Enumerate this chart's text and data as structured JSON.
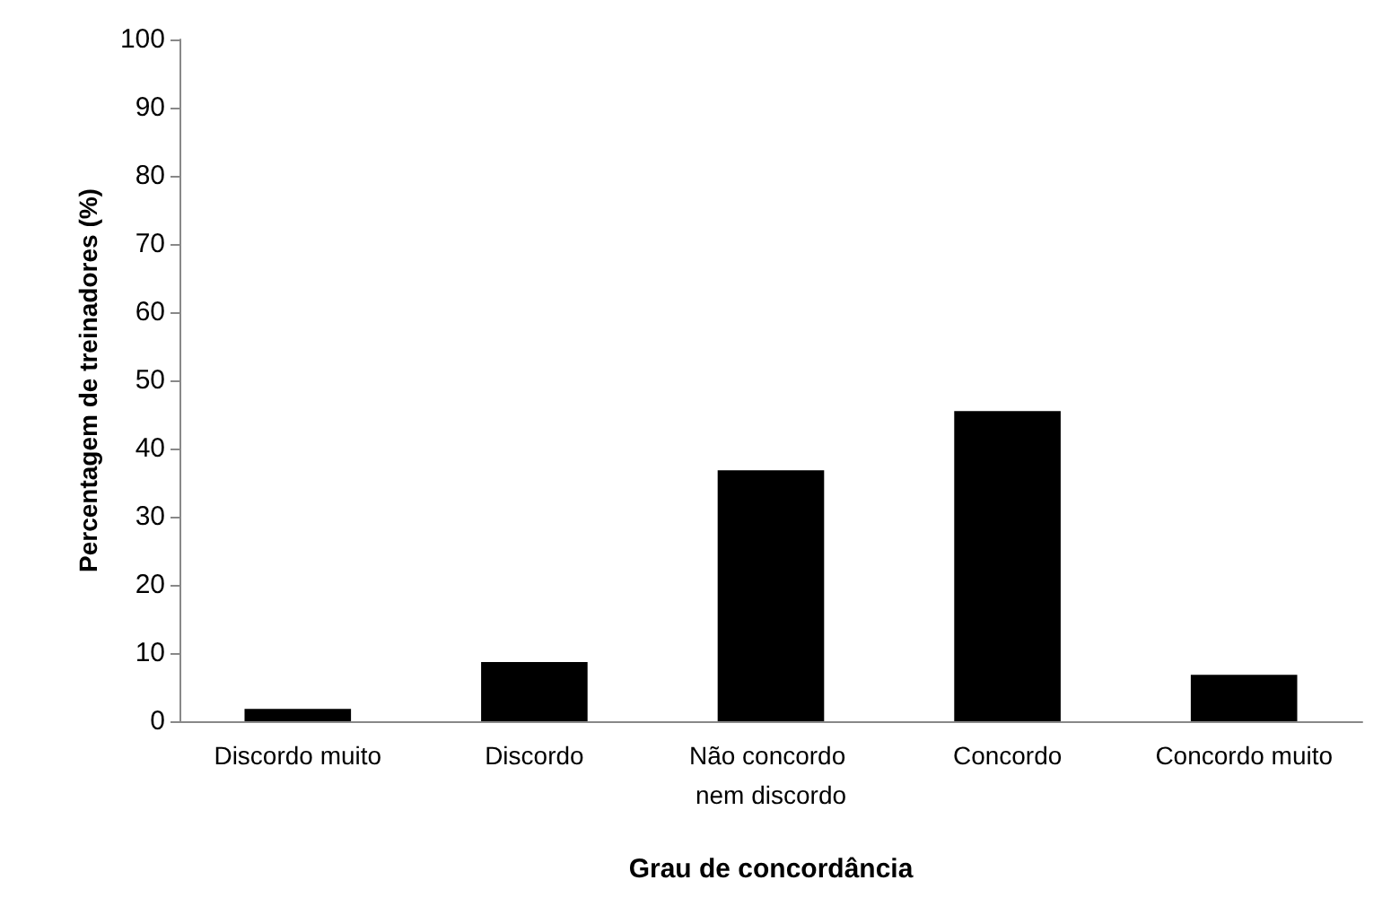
{
  "chart_data": {
    "type": "bar",
    "xlabel": "Grau de concordância",
    "ylabel": "Percentagem de treinadores (%)",
    "categories": [
      "Discordo muito",
      "Discordo",
      "Não concordo nem discordo",
      "Concordo",
      "Concordo muito"
    ],
    "values": [
      1.8,
      8.7,
      36.8,
      45.5,
      6.8
    ],
    "color": "#000000",
    "ylim": [
      0,
      100
    ],
    "yticks": [
      0,
      10,
      20,
      30,
      40,
      50,
      60,
      70,
      80,
      90,
      100
    ],
    "grid": false
  }
}
